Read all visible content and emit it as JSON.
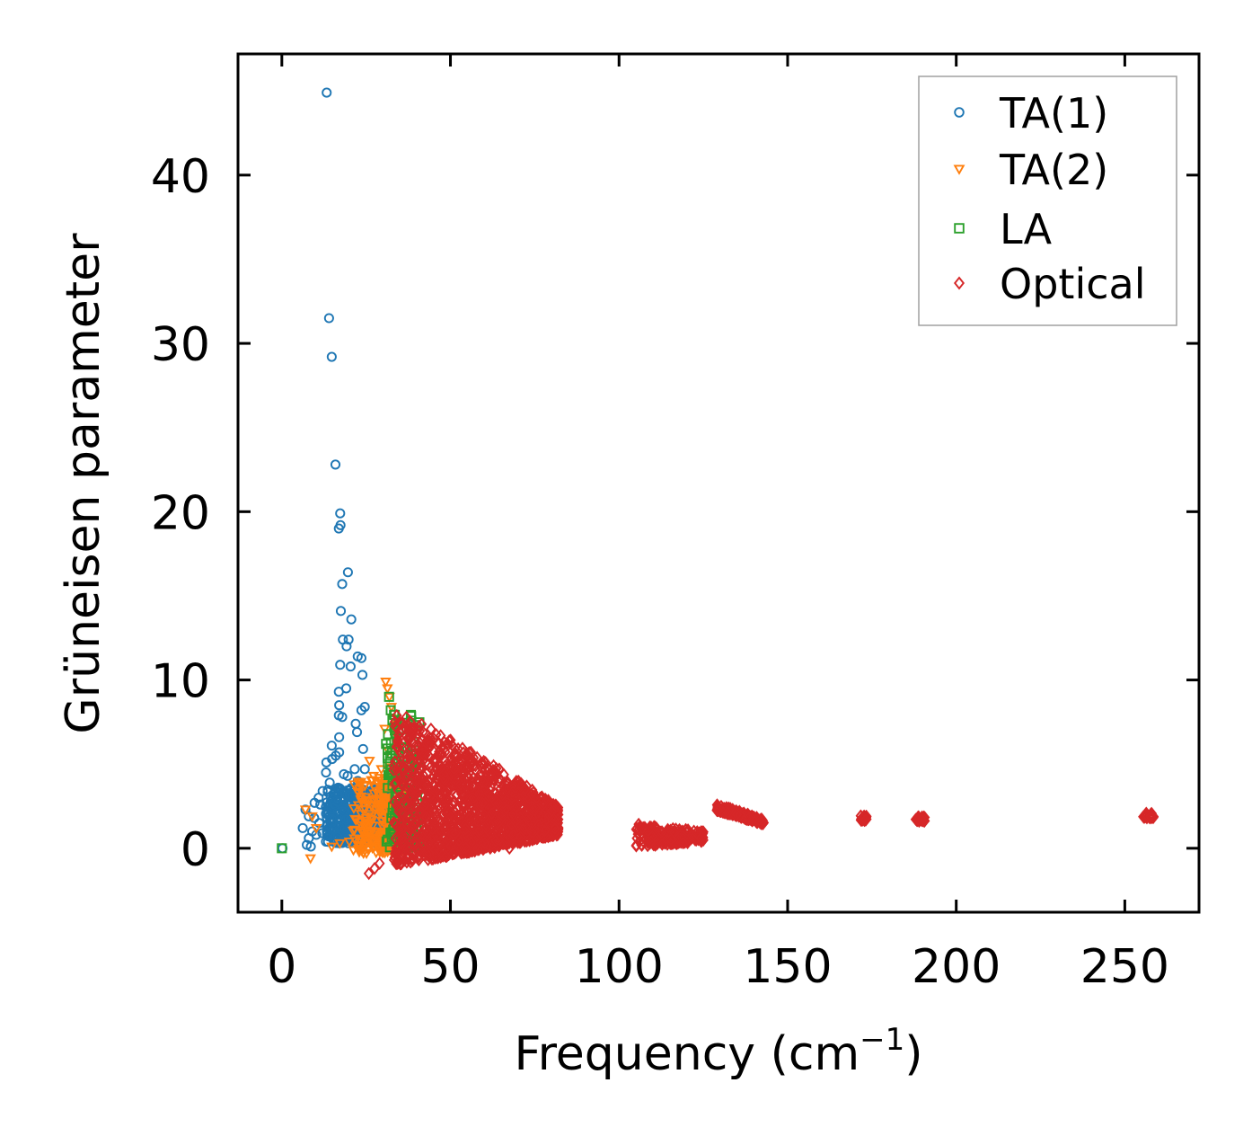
{
  "chart_data": {
    "type": "scatter",
    "title": "",
    "xlabel": "Frequency (cm",
    "xlabel_sup": "−1",
    "xlabel_suffix": ")",
    "ylabel": "Grüneisen parameter",
    "xlim": [
      -13,
      272
    ],
    "ylim": [
      -3.8,
      47.2
    ],
    "xticks": [
      0,
      50,
      100,
      150,
      200,
      250
    ],
    "xtick_labels": [
      "0",
      "50",
      "100",
      "150",
      "200",
      "250"
    ],
    "yticks": [
      0,
      10,
      20,
      30,
      40
    ],
    "ytick_labels": [
      "0",
      "10",
      "20",
      "30",
      "40"
    ],
    "grid": false,
    "legend_position": "top-right",
    "series": [
      {
        "name": "TA(1)",
        "marker": "circle",
        "color": "#1f77b4",
        "points": [
          [
            13.3,
            44.9
          ],
          [
            14.0,
            31.5
          ],
          [
            14.8,
            29.2
          ],
          [
            15.9,
            22.8
          ],
          [
            17.3,
            19.9
          ],
          [
            16.9,
            19.0
          ],
          [
            17.4,
            19.2
          ],
          [
            19.6,
            16.4
          ],
          [
            17.5,
            14.1
          ],
          [
            20.6,
            13.6
          ],
          [
            17.9,
            15.7
          ],
          [
            18.1,
            12.4
          ],
          [
            19.8,
            12.4
          ],
          [
            19.2,
            12.0
          ],
          [
            22.5,
            11.4
          ],
          [
            23.6,
            11.3
          ],
          [
            17.3,
            10.9
          ],
          [
            20.4,
            10.8
          ],
          [
            23.9,
            10.3
          ],
          [
            19.1,
            9.5
          ],
          [
            16.9,
            9.3
          ],
          [
            17.0,
            8.5
          ],
          [
            24.6,
            8.4
          ],
          [
            23.6,
            8.2
          ],
          [
            16.9,
            7.9
          ],
          [
            17.9,
            7.8
          ],
          [
            21.9,
            7.4
          ],
          [
            22.3,
            6.9
          ],
          [
            17.0,
            6.6
          ],
          [
            14.8,
            6.1
          ],
          [
            24.1,
            5.9
          ],
          [
            16.0,
            5.5
          ],
          [
            13.2,
            5.1
          ],
          [
            14.9,
            5.3
          ],
          [
            17.0,
            5.7
          ],
          [
            21.6,
            4.7
          ],
          [
            24.6,
            4.7
          ],
          [
            13.1,
            4.5
          ],
          [
            18.4,
            4.4
          ],
          [
            19.5,
            4.3
          ],
          [
            22.5,
            4.0
          ],
          [
            14.2,
            3.9
          ],
          [
            16.7,
            3.6
          ],
          [
            12.1,
            3.4
          ],
          [
            10.9,
            3.0
          ],
          [
            21.0,
            3.1
          ],
          [
            25.6,
            3.2
          ],
          [
            9.7,
            2.7
          ],
          [
            11.4,
            2.6
          ],
          [
            15.2,
            2.9
          ],
          [
            7.0,
            2.3
          ],
          [
            8.0,
            1.9
          ],
          [
            9.6,
            1.8
          ],
          [
            11.1,
            1.5
          ],
          [
            6.2,
            1.2
          ],
          [
            9.0,
            1.0
          ],
          [
            10.2,
            0.8
          ],
          [
            8.0,
            0.6
          ],
          [
            7.4,
            0.2
          ],
          [
            8.6,
            0.1
          ],
          [
            0.2,
            0.0
          ],
          [
            12.0,
            0.9
          ],
          [
            14.8,
            1.5
          ],
          [
            16.5,
            0.7
          ],
          [
            18.1,
            2.2
          ],
          [
            19.0,
            1.7
          ],
          [
            20.4,
            0.9
          ],
          [
            22.1,
            2.6
          ],
          [
            23.4,
            1.2
          ],
          [
            24.8,
            2.0
          ],
          [
            26.2,
            1.1
          ],
          [
            27.1,
            3.5
          ],
          [
            28.3,
            1.6
          ],
          [
            29.4,
            2.4
          ],
          [
            30.5,
            0.9
          ]
        ],
        "cluster": {
          "x": [
            13,
            32
          ],
          "y": [
            0.3,
            3.6
          ],
          "n": 480
        }
      },
      {
        "name": "TA(2)",
        "marker": "triangle-down",
        "color": "#ff7f0e",
        "points": [
          [
            30.8,
            9.9
          ],
          [
            31.3,
            9.5
          ],
          [
            31.9,
            9.0
          ],
          [
            32.5,
            8.4
          ],
          [
            33.0,
            7.7
          ],
          [
            33.5,
            6.9
          ],
          [
            34.1,
            6.2
          ],
          [
            30.5,
            7.1
          ],
          [
            31.6,
            5.8
          ],
          [
            26.0,
            5.2
          ],
          [
            29.5,
            4.7
          ],
          [
            32.1,
            4.8
          ],
          [
            27.2,
            4.3
          ],
          [
            7.0,
            2.3
          ],
          [
            9.0,
            1.9
          ],
          [
            8.5,
            -0.6
          ],
          [
            10.2,
            1.2
          ],
          [
            14.8,
            0.1
          ],
          [
            17.2,
            0.3
          ],
          [
            20.0,
            0.4
          ],
          [
            25.1,
            -0.3
          ],
          [
            28.6,
            0.2
          ],
          [
            23.4,
            2.9
          ],
          [
            29.8,
            3.4
          ],
          [
            34.8,
            1.5
          ]
        ],
        "cluster": {
          "x": [
            21,
            37
          ],
          "y": [
            -0.3,
            4.2
          ],
          "n": 260
        }
      },
      {
        "name": "LA",
        "marker": "square",
        "color": "#2ca02c",
        "points": [
          [
            0.0,
            0.0
          ],
          [
            31.8,
            9.0
          ],
          [
            32.3,
            8.2
          ],
          [
            32.8,
            7.6
          ],
          [
            33.5,
            7.0
          ],
          [
            34.1,
            6.2
          ],
          [
            30.9,
            6.2
          ],
          [
            34.7,
            5.5
          ],
          [
            35.4,
            4.9
          ],
          [
            36.1,
            4.3
          ],
          [
            36.9,
            3.4
          ],
          [
            37.6,
            2.6
          ],
          [
            38.3,
            1.8
          ],
          [
            38.8,
            1.1
          ],
          [
            39.2,
            0.4
          ],
          [
            35.2,
            2.2
          ],
          [
            33.9,
            3.8
          ],
          [
            37.0,
            0.9
          ]
        ],
        "cluster": {
          "x": [
            31,
            41
          ],
          "y": [
            0.0,
            8.0
          ],
          "n": 150
        }
      },
      {
        "name": "Optical",
        "marker": "diamond",
        "color": "#d62728",
        "points": [
          [
            47.0,
            5.5
          ],
          [
            46.8,
            5.0
          ],
          [
            48.0,
            4.4
          ],
          [
            56.0,
            4.0
          ],
          [
            53.0,
            3.8
          ],
          [
            50.0,
            3.6
          ],
          [
            44.5,
            4.1
          ],
          [
            43.0,
            3.7
          ],
          [
            25.8,
            -1.5
          ],
          [
            27.5,
            -1.2
          ],
          [
            29.0,
            -0.9
          ],
          [
            67.5,
            0.0
          ],
          [
            82.0,
            2.0
          ],
          [
            80.0,
            2.2
          ],
          [
            124.5,
            0.7
          ],
          [
            123.0,
            0.9
          ],
          [
            107.0,
            1.2
          ],
          [
            109.5,
            0.4
          ],
          [
            172.6,
            1.8
          ],
          [
            173.1,
            1.7
          ],
          [
            188.7,
            1.7
          ],
          [
            189.7,
            1.7
          ],
          [
            256.4,
            2.0
          ],
          [
            257.6,
            1.9
          ]
        ],
        "clusters": [
          {
            "x": [
              33,
              82
            ],
            "yTop": [
              8.2,
              2.5
            ],
            "yBot": [
              -1.0,
              0.8
            ],
            "n": 1600
          },
          {
            "x": [
              105,
              125
            ],
            "yTop": [
              1.5,
              1.0
            ],
            "yBot": [
              0.1,
              0.4
            ],
            "n": 200
          },
          {
            "x": [
              129,
              143
            ],
            "yTop": [
              2.6,
              1.7
            ],
            "yBot": [
              2.2,
              1.4
            ],
            "n": 160
          },
          {
            "x": [
              171.6,
              173.6
            ],
            "yTop": [
              1.95,
              1.95
            ],
            "yBot": [
              1.65,
              1.65
            ],
            "n": 25
          },
          {
            "x": [
              187.7,
              190.7
            ],
            "yTop": [
              1.9,
              1.9
            ],
            "yBot": [
              1.6,
              1.6
            ],
            "n": 25
          },
          {
            "x": [
              255.4,
              258.6
            ],
            "yTop": [
              2.1,
              2.1
            ],
            "yBot": [
              1.8,
              1.8
            ],
            "n": 30
          }
        ]
      }
    ]
  }
}
